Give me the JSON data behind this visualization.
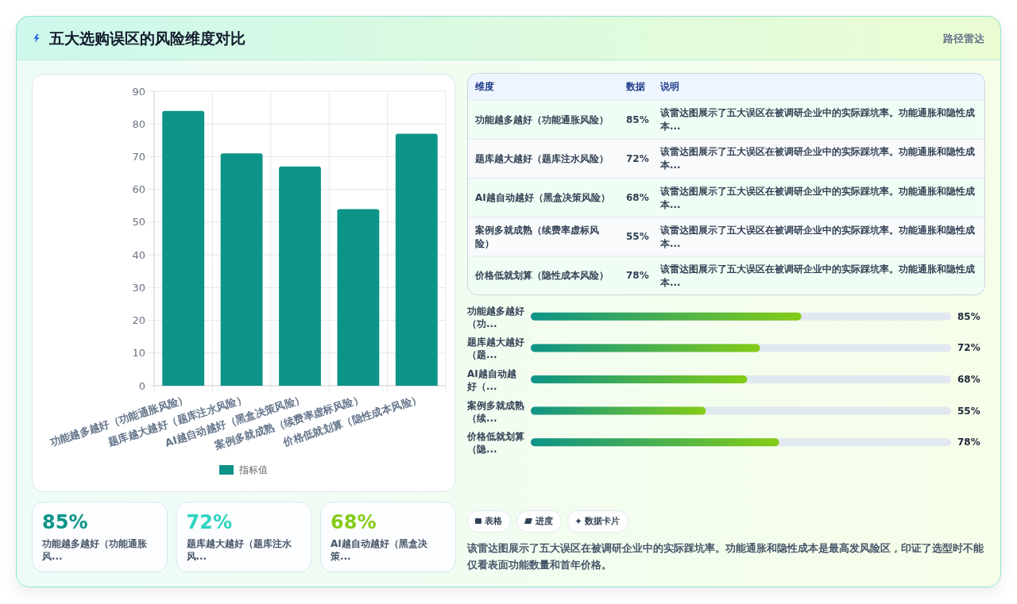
{
  "chart_data": [
    {
      "type": "other",
      "title": "五大选购误区的风险维度对比",
      "annotations": [
        "路径雷达"
      ]
    },
    {
      "type": "bar",
      "categories": [
        "功能越多越好（功能通胀风险）",
        "题库越大越好（题库注水风险）",
        "AI越自动越好（黑盒决策风险）",
        "案例多就成熟（续费率虚标风险）",
        "价格低就划算（隐性成本风险）"
      ],
      "series": [
        {
          "name": "指标值",
          "color": "#0d9488",
          "values": [
            84,
            71,
            67,
            54,
            77
          ]
        }
      ],
      "ylim": [
        0,
        90
      ],
      "yticks": [
        0,
        10,
        20,
        30,
        40,
        50,
        60,
        70,
        80,
        90
      ],
      "grid": true,
      "legend": "bottom"
    },
    {
      "type": "other",
      "categories": [
        "功能越多越好（功能通胀风险）",
        "题库越大越好（题库注水风险）",
        "AI越自动越好（黑盒决策风险）",
        "案例多就成熟（续费率虚标风险）",
        "价格低就划算（隐性成本风险）"
      ],
      "values": [
        85,
        72,
        68,
        55,
        78
      ],
      "value_labels": [
        "85%",
        "72%",
        "68%",
        "55%",
        "78%"
      ],
      "annotations": [
        "维度",
        "数据",
        "说明",
        "该雷达图展示了五大误区在被调研企业中的实际踩坑率。功能通胀和隐性成本...",
        "该雷达图展示了五大误区在被调研企业中的实际踩坑率。功能通胀和隐性成本...",
        "该雷达图展示了五大误区在被调研企业中的实际踩坑率。功能通胀和隐性成本...",
        "该雷达图展示了五大误区在被调研企业中的实际踩坑率。功能通胀和隐性成本...",
        "该雷达图展示了五大误区在被调研企业中的实际踩坑率。功能通胀和隐性成本..."
      ]
    },
    {
      "type": "bar",
      "orientation": "horizontal",
      "categories": [
        "功能越多越好（功...",
        "题库越大越好（题...",
        "AI越自动越好（...",
        "案例多就成熟（续...",
        "价格低就划算（隐..."
      ],
      "values": [
        85,
        72,
        68,
        55,
        78
      ],
      "value_labels": [
        "85%",
        "72%",
        "68%",
        "55%",
        "78%"
      ],
      "color": "#0d9488",
      "xlim": [
        0,
        132
      ],
      "tick_labels": "y"
    },
    {
      "type": "other",
      "categories": [
        "功能越多越好（功能通胀风...",
        "题库越大越好（题库注水风...",
        "AI越自动越好（黑盒决策..."
      ],
      "values": [
        85,
        72,
        68
      ],
      "value_labels": [
        "85%",
        "72%",
        "68%"
      ]
    },
    {
      "type": "other",
      "annotations": [
        "表格",
        "进度",
        "数据卡片",
        "该雷达图展示了五大误区在被调研企业中的实际踩坑率。功能通胀和隐性成本是最高发风险区，印证了选型时不能仅看表面功能数量和首年价格。"
      ]
    }
  ]
}
